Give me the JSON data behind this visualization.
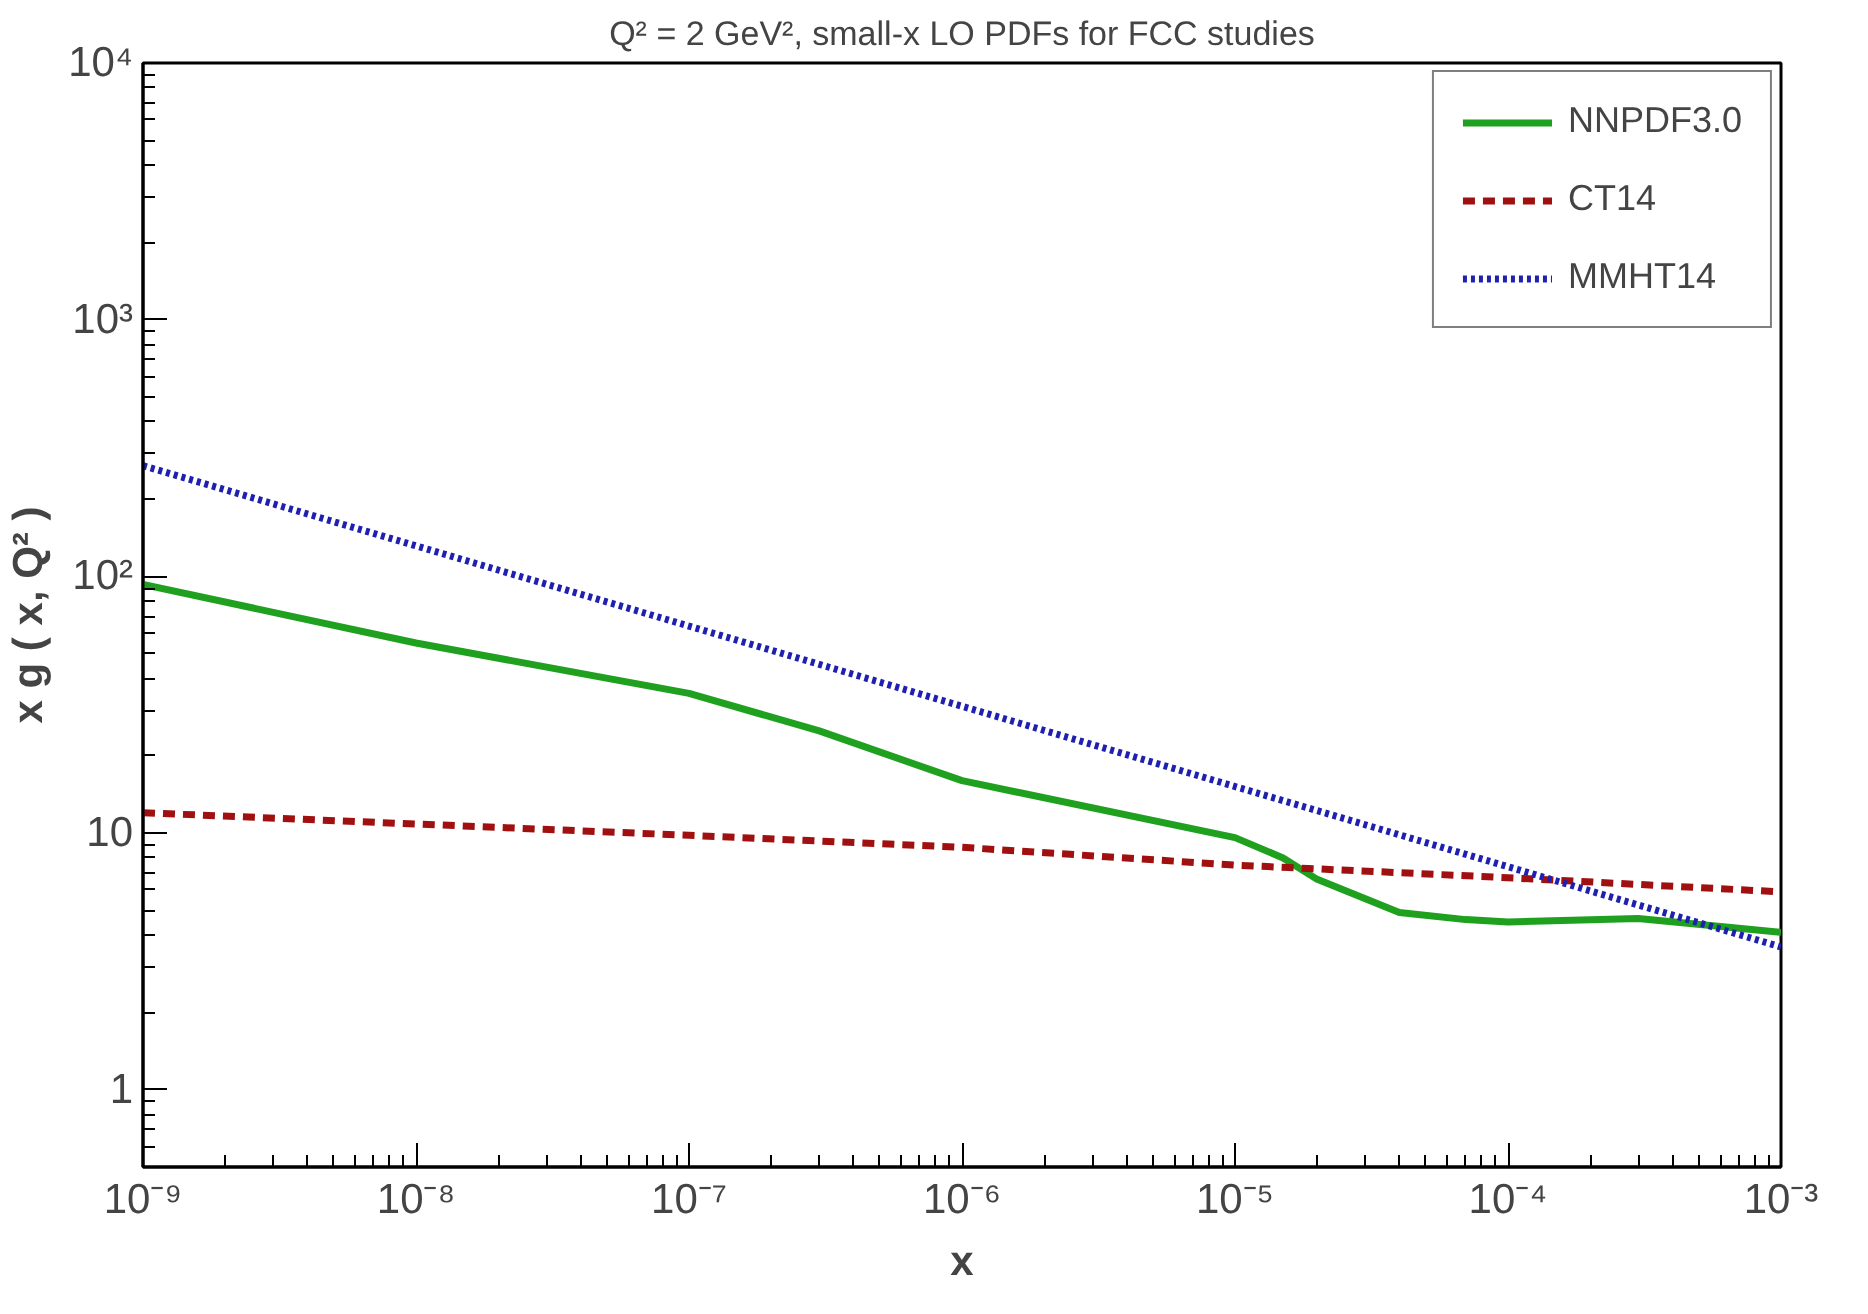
{
  "chart_data": {
    "type": "line",
    "title": "Q² = 2 GeV², small-x LO PDFs for FCC studies",
    "xlabel": "x",
    "ylabel": "x g ( x, Q² )",
    "log": "xy",
    "grid": false,
    "legend": "top right",
    "xlim": [
      1e-09,
      0.001
    ],
    "ylim": [
      0.5,
      10000
    ],
    "xticks": [
      {
        "value": 1e-09,
        "label": "10⁻⁹"
      },
      {
        "value": 1e-08,
        "label": "10⁻⁸"
      },
      {
        "value": 1e-07,
        "label": "10⁻⁷"
      },
      {
        "value": 1e-06,
        "label": "10⁻⁶"
      },
      {
        "value": 1e-05,
        "label": "10⁻⁵"
      },
      {
        "value": 0.0001,
        "label": "10⁻⁴"
      },
      {
        "value": 0.001,
        "label": "10⁻³"
      }
    ],
    "yticks": [
      1,
      10,
      {
        "value": 100,
        "label": "10²"
      },
      {
        "value": 1000,
        "label": "10³"
      },
      {
        "value": 10000,
        "label": "10⁴"
      }
    ],
    "series": [
      {
        "name": "NNPDF3.0",
        "color": "#1fa01f",
        "line_style": "solid",
        "x": [
          1e-09,
          1e-08,
          1e-07,
          3e-07,
          1e-06,
          1e-05,
          1.5e-05,
          2e-05,
          4e-05,
          7e-05,
          0.0001,
          0.0003,
          0.001
        ],
        "values": [
          93,
          55,
          35,
          25,
          16,
          9.6,
          8.0,
          6.6,
          4.9,
          4.6,
          4.5,
          4.65,
          4.1
        ]
      },
      {
        "name": "CT14",
        "color": "#a01010",
        "line_style": "dashed",
        "x": [
          1e-09,
          1e-07,
          1e-06,
          1e-05,
          0.0001,
          0.001
        ],
        "values": [
          12,
          9.8,
          8.8,
          7.5,
          6.7,
          5.9
        ]
      },
      {
        "name": "MMHT14",
        "color": "#2020b0",
        "line_style": "dotted",
        "x": [
          1e-09,
          0.001
        ],
        "values": [
          270,
          3.6
        ]
      }
    ]
  }
}
